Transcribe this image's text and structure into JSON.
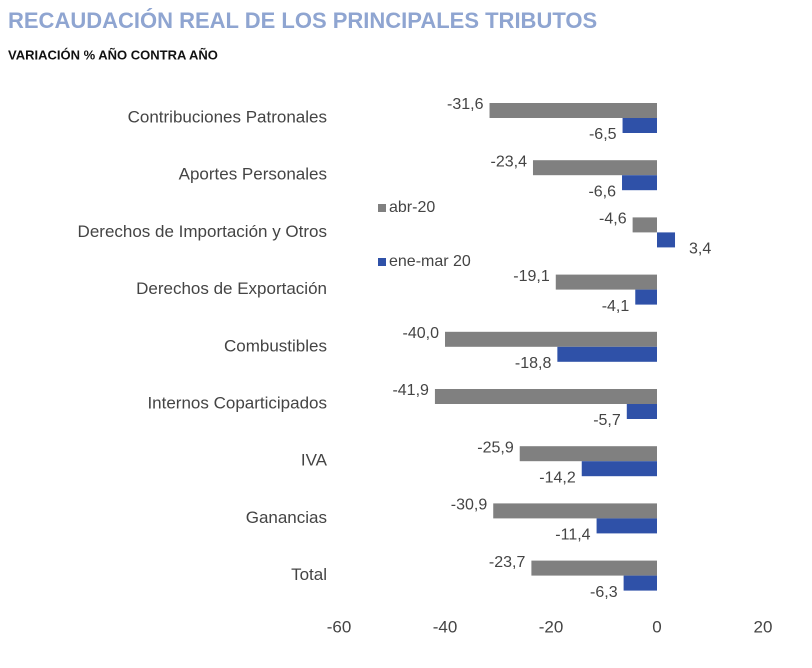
{
  "chart_data": {
    "type": "barh",
    "title": "RECAUDACIÓN REAL DE LOS PRINCIPALES TRIBUTOS",
    "subtitle": "VARIACIÓN % AÑO CONTRA AÑO",
    "categories": [
      "Contribuciones Patronales",
      "Aportes Personales",
      "Derechos de Importación y Otros",
      "Derechos de Exportación",
      "Combustibles",
      "Internos Coparticipados",
      "IVA",
      "Ganancias",
      "Total"
    ],
    "series": [
      {
        "name": "abr-20",
        "color": "#808080",
        "values": [
          -31.6,
          -23.4,
          -4.6,
          -19.1,
          -40.0,
          -41.9,
          -25.9,
          -30.9,
          -23.7
        ],
        "value_labels": [
          "-31,6",
          "-23,4",
          "-4,6",
          "-19,1",
          "-40,0",
          "-41,9",
          "-25,9",
          "-30,9",
          "-23,7"
        ]
      },
      {
        "name": "ene-mar 20",
        "color": "#2f51a8",
        "values": [
          -6.5,
          -6.6,
          3.4,
          -4.1,
          -18.8,
          -5.7,
          -14.2,
          -11.4,
          -6.3
        ],
        "value_labels": [
          "-6,5",
          "-6,6",
          "3,4",
          "-4,1",
          "-18,8",
          "-5,7",
          "-14,2",
          "-11,4",
          "-6,3"
        ]
      }
    ],
    "xlim": [
      -60,
      20
    ],
    "xticks": [
      -60,
      -40,
      -20,
      0,
      20
    ],
    "grid": false
  }
}
